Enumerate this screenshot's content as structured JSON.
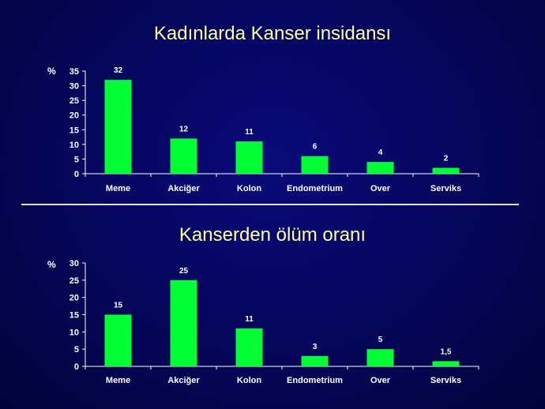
{
  "chart_data": [
    {
      "type": "bar",
      "title": "Kadınlarda Kanser insidansı",
      "ylabel": "%",
      "categories": [
        "Meme",
        "Akciğer",
        "Kolon",
        "Endometrium",
        "Over",
        "Serviks"
      ],
      "values": [
        32,
        12,
        11,
        6,
        4,
        2
      ],
      "value_labels": [
        "32",
        "12",
        "11",
        "6",
        "4",
        "2"
      ],
      "ylim": [
        0,
        35
      ],
      "yticks": [
        "0",
        "5",
        "10",
        "15",
        "20",
        "25",
        "30",
        "35"
      ],
      "bar_color": "#00ff33",
      "grid": false,
      "legend": "none"
    },
    {
      "type": "bar",
      "title": "Kanserden ölüm oranı",
      "ylabel": "%",
      "categories": [
        "Meme",
        "Akciğer",
        "Kolon",
        "Endometrium",
        "Over",
        "Serviks"
      ],
      "values": [
        15,
        25,
        11,
        3,
        5,
        1.5
      ],
      "value_labels": [
        "15",
        "25",
        "11",
        "3",
        "5",
        "1,5"
      ],
      "ylim": [
        0,
        30
      ],
      "yticks": [
        "0",
        "5",
        "10",
        "15",
        "20",
        "25",
        "30"
      ],
      "bar_color": "#00ff33",
      "grid": false,
      "legend": "none"
    }
  ],
  "colors": {
    "title": "#ffff99",
    "background": "#060660",
    "text": "#ffffff",
    "divider": "#e0e0f0"
  }
}
